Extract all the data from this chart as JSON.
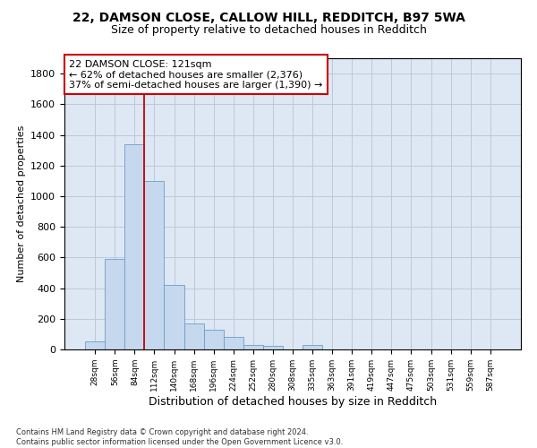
{
  "title_line1": "22, DAMSON CLOSE, CALLOW HILL, REDDITCH, B97 5WA",
  "title_line2": "Size of property relative to detached houses in Redditch",
  "xlabel": "Distribution of detached houses by size in Redditch",
  "ylabel": "Number of detached properties",
  "footnote": "Contains HM Land Registry data © Crown copyright and database right 2024.\nContains public sector information licensed under the Open Government Licence v3.0.",
  "bin_labels": [
    "28sqm",
    "56sqm",
    "84sqm",
    "112sqm",
    "140sqm",
    "168sqm",
    "196sqm",
    "224sqm",
    "252sqm",
    "280sqm",
    "308sqm",
    "335sqm",
    "363sqm",
    "391sqm",
    "419sqm",
    "447sqm",
    "475sqm",
    "503sqm",
    "531sqm",
    "559sqm",
    "587sqm"
  ],
  "bar_heights": [
    55,
    590,
    1340,
    1100,
    420,
    170,
    130,
    80,
    30,
    25,
    0,
    30,
    0,
    0,
    0,
    0,
    0,
    0,
    0,
    0,
    0
  ],
  "bar_color": "#c5d8ed",
  "bar_edge_color": "#6b9ec8",
  "vline_x": 2.5,
  "annotation_text": "22 DAMSON CLOSE: 121sqm\n← 62% of detached houses are smaller (2,376)\n37% of semi-detached houses are larger (1,390) →",
  "annotation_box_color": "#ffffff",
  "annotation_box_edge": "#cc0000",
  "annotation_fontsize": 8,
  "ylim": [
    0,
    1900
  ],
  "yticks": [
    0,
    200,
    400,
    600,
    800,
    1000,
    1200,
    1400,
    1600,
    1800
  ],
  "grid_color": "#c0c8d8",
  "bg_color": "#dde8f4",
  "title1_fontsize": 10,
  "title2_fontsize": 9,
  "xlabel_fontsize": 9,
  "ylabel_fontsize": 8
}
